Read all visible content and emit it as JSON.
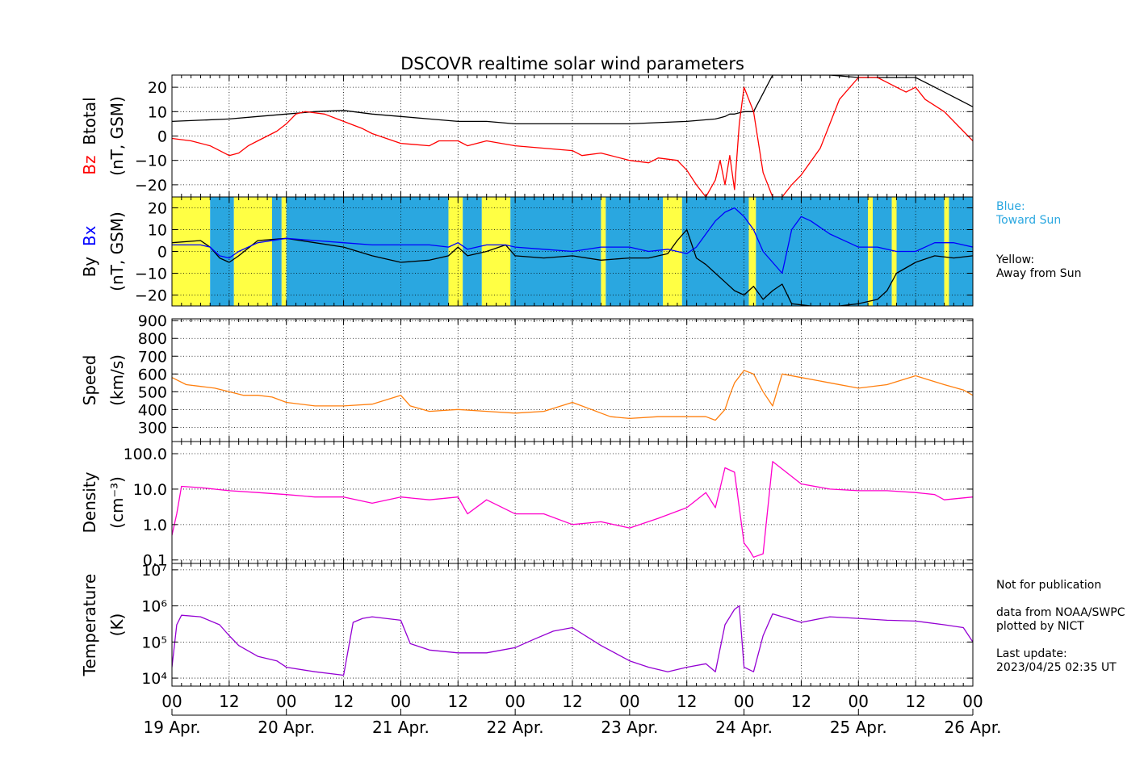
{
  "title": "DSCOVR realtime solar wind parameters",
  "colors": {
    "btotal": "#000000",
    "bz": "#ff0000",
    "by": "#000000",
    "bx": "#0000ff",
    "toward": "#2aa7e0",
    "away": "#ffff44",
    "speed": "#ff7f0e",
    "density": "#ff00cc",
    "temperature": "#9400d3"
  },
  "notes": {
    "blue_legend": [
      "Blue:",
      "Toward Sun"
    ],
    "yellow_legend": [
      "Yellow:",
      "Away from Sun"
    ],
    "footer": [
      "Not for publication",
      "",
      "data from NOAA/SWPC",
      "plotted by NICT",
      "",
      "Last update:",
      "2023/04/25 02:35 UT"
    ]
  },
  "chart_data": [
    {
      "type": "line",
      "panel": "magnetic_field_total",
      "ylabel_parts": [
        {
          "text": "Bz",
          "color": "#ff0000"
        },
        {
          "text": "Btotal",
          "color": "#000000"
        }
      ],
      "ylabel2": "(nT, GSM)",
      "ylim": [
        -25,
        25
      ],
      "yticks": [
        -20,
        -10,
        0,
        10,
        20
      ],
      "yticklabels": [
        "−20",
        "−10",
        "0",
        "10",
        "20"
      ],
      "grid": true,
      "x_unit": "hours since 19 Apr. 00 UT",
      "series": [
        {
          "key": "btotal",
          "x": [
            0,
            6,
            12,
            18,
            24,
            30,
            36,
            42,
            48,
            54,
            60,
            66,
            72,
            78,
            84,
            90,
            96,
            102,
            108,
            114,
            116,
            117,
            118,
            120,
            122,
            126,
            132,
            138,
            144,
            150,
            156,
            162,
            168,
            170,
            174
          ],
          "y": [
            6,
            6.5,
            7,
            8,
            9,
            10,
            10.5,
            9,
            8,
            7,
            6,
            6,
            5,
            5,
            5,
            5,
            5,
            5.5,
            6,
            7,
            8,
            9,
            9,
            10,
            10,
            28,
            28,
            28,
            24,
            24,
            24,
            18,
            12,
            8,
            6
          ]
        },
        {
          "key": "bz",
          "x": [
            0,
            4,
            8,
            10,
            12,
            14,
            16,
            18,
            22,
            24,
            26,
            28,
            32,
            36,
            40,
            42,
            48,
            54,
            56,
            60,
            62,
            66,
            72,
            78,
            84,
            86,
            90,
            96,
            100,
            102,
            106,
            108,
            110,
            112,
            114,
            115,
            116,
            117,
            118,
            119,
            120,
            121,
            122,
            124,
            126,
            128,
            130,
            132,
            136,
            138,
            140,
            144,
            148,
            150,
            154,
            156,
            158,
            162,
            166,
            168,
            170,
            174
          ],
          "y": [
            -1,
            -2,
            -4,
            -6,
            -8,
            -7,
            -4,
            -2,
            2,
            5,
            9,
            10,
            9,
            6,
            3,
            1,
            -3,
            -4,
            -2,
            -2,
            -4,
            -2,
            -4,
            -5,
            -6,
            -8,
            -7,
            -10,
            -11,
            -9,
            -10,
            -14,
            -20,
            -25,
            -18,
            -10,
            -20,
            -8,
            -22,
            5,
            20,
            15,
            10,
            -15,
            -28,
            -25,
            -20,
            -16,
            -5,
            5,
            15,
            24,
            24,
            22,
            18,
            20,
            15,
            10,
            2,
            -2,
            4,
            5
          ]
        }
      ]
    },
    {
      "type": "line",
      "panel": "magnetic_field_components",
      "ylabel_parts": [
        {
          "text": "By",
          "color": "#000000"
        },
        {
          "text": "Bx",
          "color": "#0000ff"
        }
      ],
      "ylabel2": "(nT, GSM)",
      "ylim": [
        -25,
        25
      ],
      "yticks": [
        -20,
        -10,
        0,
        10,
        20
      ],
      "yticklabels": [
        "−20",
        "−10",
        "0",
        "10",
        "20"
      ],
      "grid": true,
      "sector_bands": [
        {
          "x0": 0,
          "x1": 8,
          "sector": "away"
        },
        {
          "x0": 8,
          "x1": 13,
          "sector": "toward"
        },
        {
          "x0": 13,
          "x1": 21,
          "sector": "away"
        },
        {
          "x0": 21,
          "x1": 23,
          "sector": "toward"
        },
        {
          "x0": 23,
          "x1": 24,
          "sector": "away"
        },
        {
          "x0": 24,
          "x1": 58,
          "sector": "toward"
        },
        {
          "x0": 58,
          "x1": 61,
          "sector": "away"
        },
        {
          "x0": 61,
          "x1": 65,
          "sector": "toward"
        },
        {
          "x0": 65,
          "x1": 71,
          "sector": "away"
        },
        {
          "x0": 71,
          "x1": 90,
          "sector": "toward"
        },
        {
          "x0": 90,
          "x1": 91,
          "sector": "away"
        },
        {
          "x0": 91,
          "x1": 103,
          "sector": "toward"
        },
        {
          "x0": 103,
          "x1": 107,
          "sector": "away"
        },
        {
          "x0": 107,
          "x1": 121,
          "sector": "toward"
        },
        {
          "x0": 121,
          "x1": 122.5,
          "sector": "away"
        },
        {
          "x0": 122.5,
          "x1": 146,
          "sector": "toward"
        },
        {
          "x0": 146,
          "x1": 147,
          "sector": "away"
        },
        {
          "x0": 147,
          "x1": 151,
          "sector": "toward"
        },
        {
          "x0": 151,
          "x1": 152,
          "sector": "away"
        },
        {
          "x0": 152,
          "x1": 162,
          "sector": "toward"
        },
        {
          "x0": 162,
          "x1": 163,
          "sector": "away"
        },
        {
          "x0": 163,
          "x1": 175,
          "sector": "toward"
        }
      ],
      "series": [
        {
          "key": "by",
          "x": [
            0,
            6,
            8,
            10,
            12,
            14,
            18,
            24,
            30,
            36,
            42,
            48,
            54,
            58,
            60,
            62,
            66,
            70,
            72,
            78,
            84,
            90,
            96,
            100,
            104,
            106,
            108,
            110,
            112,
            114,
            116,
            118,
            120,
            122,
            124,
            126,
            128,
            130,
            134,
            138,
            140,
            144,
            148,
            150,
            152,
            156,
            160,
            164,
            168,
            170,
            174
          ],
          "y": [
            4,
            5,
            2,
            -3,
            -5,
            -2,
            5,
            6,
            4,
            2,
            -2,
            -5,
            -4,
            -2,
            2,
            -2,
            0,
            3,
            -2,
            -3,
            -2,
            -4,
            -3,
            -3,
            -1,
            5,
            10,
            -3,
            -6,
            -10,
            -14,
            -18,
            -20,
            -16,
            -22,
            -18,
            -15,
            -24,
            -26,
            -26,
            -25,
            -24,
            -22,
            -18,
            -10,
            -5,
            -2,
            -3,
            -2,
            -2,
            0
          ]
        },
        {
          "key": "bx",
          "x": [
            0,
            6,
            8,
            10,
            12,
            14,
            18,
            24,
            30,
            36,
            42,
            48,
            54,
            58,
            60,
            62,
            66,
            70,
            72,
            78,
            84,
            90,
            96,
            100,
            104,
            108,
            110,
            112,
            114,
            116,
            118,
            120,
            122,
            124,
            126,
            128,
            130,
            132,
            134,
            138,
            142,
            144,
            148,
            152,
            156,
            160,
            164,
            168,
            170,
            174
          ],
          "y": [
            3,
            3,
            2,
            -2,
            -3,
            0,
            4,
            6,
            5,
            4,
            3,
            3,
            3,
            2,
            4,
            1,
            3,
            3,
            2,
            1,
            0,
            2,
            2,
            0,
            1,
            -1,
            2,
            8,
            14,
            18,
            20,
            16,
            10,
            0,
            -5,
            -10,
            10,
            16,
            14,
            8,
            4,
            2,
            2,
            0,
            0,
            4,
            4,
            2,
            3,
            1
          ]
        }
      ]
    },
    {
      "type": "line",
      "panel": "speed",
      "ylabel_parts": [
        {
          "text": "Speed",
          "color": "#000000"
        }
      ],
      "ylabel2": "(km/s)",
      "ylim": [
        220,
        910
      ],
      "yticks": [
        300,
        400,
        500,
        600,
        700,
        800,
        900
      ],
      "yticklabels": [
        "300",
        "400",
        "500",
        "600",
        "700",
        "800",
        "900"
      ],
      "grid": true,
      "series": [
        {
          "key": "speed",
          "x": [
            0,
            3,
            6,
            9,
            12,
            15,
            18,
            21,
            24,
            30,
            36,
            42,
            48,
            50,
            54,
            60,
            66,
            72,
            78,
            84,
            88,
            90,
            92,
            96,
            102,
            108,
            112,
            114,
            116,
            117,
            118,
            120,
            122,
            124,
            126,
            128,
            132,
            138,
            144,
            150,
            156,
            162,
            166,
            168,
            174
          ],
          "y": [
            580,
            540,
            530,
            520,
            500,
            480,
            480,
            470,
            440,
            420,
            420,
            430,
            480,
            420,
            390,
            400,
            390,
            380,
            390,
            440,
            400,
            380,
            360,
            350,
            360,
            360,
            360,
            340,
            400,
            480,
            550,
            620,
            600,
            500,
            420,
            600,
            580,
            550,
            520,
            540,
            590,
            540,
            510,
            480,
            560
          ]
        }
      ]
    },
    {
      "type": "line",
      "panel": "density",
      "ylabel_parts": [
        {
          "text": "Density",
          "color": "#000000"
        }
      ],
      "ylabel2": "(cm⁻³)",
      "yscale": "log",
      "ylim": [
        0.08,
        220
      ],
      "yticks": [
        0.1,
        1.0,
        10.0,
        100.0
      ],
      "yticklabels": [
        "0.1",
        "1.0",
        "10.0",
        "100.0"
      ],
      "grid": true,
      "series": [
        {
          "key": "density",
          "x": [
            0,
            1,
            2,
            6,
            12,
            18,
            24,
            30,
            36,
            42,
            48,
            54,
            60,
            62,
            66,
            72,
            78,
            84,
            90,
            96,
            102,
            108,
            112,
            114,
            116,
            118,
            120,
            121,
            122,
            124,
            126,
            132,
            138,
            144,
            150,
            156,
            160,
            162,
            168,
            170,
            174
          ],
          "y": [
            0.5,
            2,
            12,
            11,
            9,
            8,
            7,
            6,
            6,
            4,
            6,
            5,
            6,
            2,
            5,
            2,
            2,
            1,
            1.2,
            0.8,
            1.5,
            3,
            8,
            3,
            40,
            30,
            0.3,
            0.2,
            0.12,
            0.15,
            60,
            14,
            10,
            9,
            9,
            8,
            7,
            5,
            6,
            1.5,
            9
          ]
        }
      ]
    },
    {
      "type": "line",
      "panel": "temperature",
      "ylabel_parts": [
        {
          "text": "Temperature",
          "color": "#000000"
        }
      ],
      "ylabel2": "(K)",
      "yscale": "log",
      "ylim": [
        6000,
        15000000
      ],
      "yticks": [
        10000,
        100000,
        1000000,
        10000000
      ],
      "yticklabels": [
        "10⁴",
        "10⁵",
        "10⁶",
        "10⁷"
      ],
      "grid": true,
      "series": [
        {
          "key": "temperature",
          "x": [
            0,
            1,
            2,
            6,
            10,
            12,
            14,
            18,
            22,
            24,
            30,
            36,
            38,
            40,
            42,
            48,
            50,
            54,
            60,
            66,
            72,
            76,
            80,
            84,
            90,
            96,
            100,
            104,
            108,
            112,
            114,
            116,
            118,
            119,
            120,
            122,
            124,
            126,
            132,
            138,
            144,
            150,
            156,
            162,
            166,
            168,
            170,
            174
          ],
          "y": [
            20000,
            300000,
            550000,
            500000,
            300000,
            150000,
            80000,
            40000,
            30000,
            20000,
            15000,
            12000,
            350000,
            450000,
            500000,
            400000,
            90000,
            60000,
            50000,
            50000,
            70000,
            120000,
            200000,
            250000,
            80000,
            30000,
            20000,
            15000,
            20000,
            25000,
            15000,
            300000,
            800000,
            1000000,
            20000,
            15000,
            150000,
            600000,
            350000,
            500000,
            450000,
            400000,
            380000,
            300000,
            250000,
            100000,
            700000,
            800000
          ]
        }
      ]
    }
  ],
  "xaxis": {
    "tick_labels": [
      "00",
      "12",
      "00",
      "12",
      "00",
      "12",
      "00",
      "12",
      "00",
      "12",
      "00",
      "12",
      "00",
      "12",
      "00"
    ],
    "date_labels": [
      "19 Apr.",
      "20 Apr.",
      "21 Apr.",
      "22 Apr.",
      "23 Apr.",
      "24 Apr.",
      "25 Apr.",
      "26 Apr."
    ]
  }
}
